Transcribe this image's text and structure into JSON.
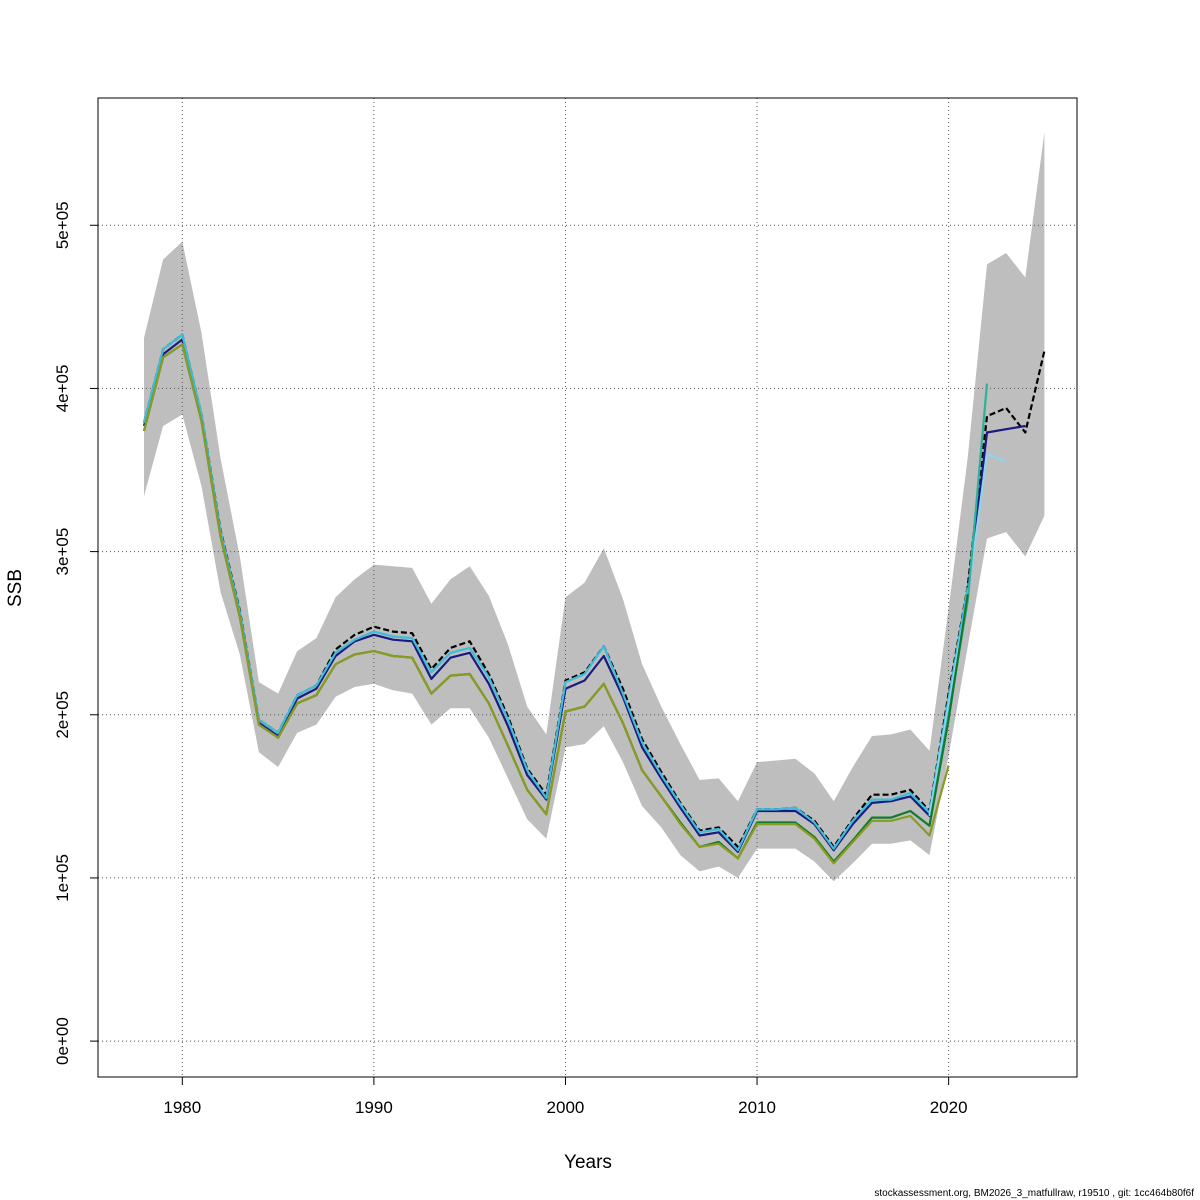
{
  "chart_data": {
    "type": "line",
    "title": "",
    "xlabel": "Years",
    "ylabel": "SSB",
    "xlim": [
      1975.6,
      2026.7
    ],
    "ylim": [
      -22000,
      578000
    ],
    "grid": true,
    "legend": "none",
    "x_ticks": [
      {
        "value": 1980,
        "label": "1980"
      },
      {
        "value": 1990,
        "label": "1990"
      },
      {
        "value": 2000,
        "label": "2000"
      },
      {
        "value": 2010,
        "label": "2010"
      },
      {
        "value": 2020,
        "label": "2020"
      }
    ],
    "y_ticks": [
      {
        "value": 0,
        "label": "0e+00"
      },
      {
        "value": 100000,
        "label": "1e+05"
      },
      {
        "value": 200000,
        "label": "2e+05"
      },
      {
        "value": 300000,
        "label": "3e+05"
      },
      {
        "value": 400000,
        "label": "4e+05"
      },
      {
        "value": 500000,
        "label": "5e+05"
      }
    ],
    "confidence_band": {
      "color": "#bebebe",
      "x": [
        1978,
        1979,
        1980,
        1981,
        1982,
        1983,
        1984,
        1985,
        1986,
        1987,
        1988,
        1989,
        1990,
        1991,
        1992,
        1993,
        1994,
        1995,
        1996,
        1997,
        1998,
        1999,
        2000,
        2001,
        2002,
        2003,
        2004,
        2005,
        2006,
        2007,
        2008,
        2009,
        2010,
        2011,
        2012,
        2013,
        2014,
        2015,
        2016,
        2017,
        2018,
        2019,
        2020,
        2021,
        2022,
        2023,
        2024,
        2025
      ],
      "lower": [
        334000,
        377000,
        384000,
        340000,
        275000,
        237000,
        177000,
        168000,
        189000,
        194000,
        211000,
        217000,
        219000,
        215000,
        213000,
        194000,
        204000,
        204000,
        186000,
        161000,
        136000,
        124000,
        180000,
        182000,
        193000,
        171000,
        144000,
        131000,
        114000,
        104000,
        107000,
        100000,
        118000,
        118000,
        118000,
        110000,
        98000,
        109000,
        121000,
        121000,
        123000,
        114000,
        175000,
        242000,
        308000,
        312000,
        297000,
        322000
      ],
      "upper": [
        431000,
        479000,
        490000,
        434000,
        357000,
        297000,
        220000,
        213000,
        239000,
        247000,
        272000,
        283000,
        292000,
        291000,
        290000,
        268000,
        283000,
        291000,
        273000,
        243000,
        205000,
        188000,
        272000,
        281000,
        302000,
        271000,
        231000,
        205000,
        182000,
        160000,
        161000,
        147000,
        171000,
        172000,
        173000,
        164000,
        147000,
        168000,
        187000,
        188000,
        191000,
        178000,
        265000,
        358000,
        476000,
        483000,
        468000,
        557000
      ]
    },
    "series": [
      {
        "color": "#000000",
        "dashed": true,
        "x": [
          1978,
          1979,
          1980,
          1981,
          1982,
          1983,
          1984,
          1985,
          1986,
          1987,
          1988,
          1989,
          1990,
          1991,
          1992,
          1993,
          1994,
          1995,
          1996,
          1997,
          1998,
          1999,
          2000,
          2001,
          2002,
          2003,
          2004,
          2005,
          2006,
          2007,
          2008,
          2009,
          2010,
          2011,
          2012,
          2013,
          2014,
          2015,
          2016,
          2017,
          2018,
          2019,
          2020,
          2021,
          2022,
          2023,
          2024,
          2025
        ],
        "values": [
          379000,
          424000,
          433000,
          384000,
          313000,
          264000,
          197000,
          189000,
          212000,
          218000,
          240000,
          249000,
          254000,
          251000,
          250000,
          228000,
          241000,
          245000,
          225000,
          199000,
          167000,
          151000,
          221000,
          226000,
          242000,
          216000,
          185000,
          165000,
          146000,
          129000,
          131000,
          119000,
          142000,
          142000,
          143000,
          135000,
          119000,
          136000,
          151000,
          151000,
          154000,
          141000,
          213000,
          279000,
          383000,
          388000,
          373000,
          423000
        ]
      },
      {
        "color": "#1a1a80",
        "dashed": false,
        "x": [
          1978,
          1979,
          1980,
          1981,
          1982,
          1983,
          1984,
          1985,
          1986,
          1987,
          1988,
          1989,
          1990,
          1991,
          1992,
          1993,
          1994,
          1995,
          1996,
          1997,
          1998,
          1999,
          2000,
          2001,
          2002,
          2003,
          2004,
          2005,
          2006,
          2007,
          2008,
          2009,
          2010,
          2011,
          2012,
          2013,
          2014,
          2015,
          2016,
          2017,
          2018,
          2019,
          2020,
          2021,
          2022,
          2023,
          2024
        ],
        "values": [
          377000,
          421000,
          430000,
          382000,
          311000,
          262000,
          195000,
          187000,
          210000,
          216000,
          236000,
          245000,
          249000,
          246000,
          245000,
          222000,
          235000,
          238000,
          219000,
          193000,
          163000,
          148000,
          216000,
          221000,
          236000,
          211000,
          180000,
          161000,
          143000,
          126000,
          128000,
          116000,
          141000,
          141000,
          141000,
          133000,
          117000,
          133000,
          146000,
          147000,
          150000,
          138000,
          207000,
          275000,
          373000,
          375000,
          377000
        ]
      },
      {
        "color": "#40bcd8",
        "dashed": false,
        "x": [
          1978,
          1979,
          1980,
          1981,
          1982,
          1983,
          1984,
          1985,
          1986,
          1987,
          1988,
          1989,
          1990,
          1991,
          1992,
          1993,
          1994,
          1995,
          1996,
          1997,
          1998,
          1999,
          2000,
          2001,
          2002,
          2003,
          2004,
          2005,
          2006,
          2007,
          2008,
          2009,
          2010,
          2011,
          2012,
          2013,
          2014,
          2015,
          2016,
          2017,
          2018,
          2019,
          2020,
          2021
        ],
        "values": [
          379000,
          424000,
          433000,
          384000,
          312000,
          263000,
          197000,
          189000,
          212000,
          218000,
          238000,
          246000,
          251000,
          248000,
          247000,
          226000,
          238000,
          241000,
          223000,
          197000,
          166000,
          149000,
          220000,
          225000,
          242000,
          213000,
          183000,
          163000,
          145000,
          128000,
          130000,
          117000,
          142000,
          142000,
          143000,
          134000,
          118000,
          135000,
          148000,
          148000,
          152000,
          140000,
          210000,
          278000
        ]
      },
      {
        "color": "#8fd3f0",
        "dashed": false,
        "x": [
          2019,
          2020,
          2021,
          2022,
          2023
        ],
        "values": [
          138000,
          206000,
          273000,
          360000,
          355000
        ]
      },
      {
        "color": "#2eb09a",
        "dashed": false,
        "x": [
          2019,
          2020,
          2021,
          2022
        ],
        "values": [
          132000,
          200000,
          270000,
          403000
        ]
      },
      {
        "color": "#127a2e",
        "dashed": false,
        "x": [
          1978,
          1979,
          1980,
          1981,
          1982,
          1983,
          1984,
          1985,
          1986,
          1987,
          1988,
          1989,
          1990,
          1991,
          1992,
          1993,
          1994,
          1995,
          1996,
          1997,
          1998,
          1999,
          2000,
          2001,
          2002,
          2003,
          2004,
          2005,
          2006,
          2007,
          2008,
          2009,
          2010,
          2011,
          2012,
          2013,
          2014,
          2015,
          2016,
          2017,
          2018,
          2019,
          2020,
          2021
        ],
        "values": [
          374000,
          419000,
          427000,
          380000,
          309000,
          260000,
          194000,
          186000,
          207000,
          212000,
          231000,
          237000,
          239000,
          236000,
          235000,
          213000,
          224000,
          225000,
          207000,
          181000,
          154000,
          139000,
          202000,
          205000,
          219000,
          195000,
          166000,
          150000,
          134000,
          119000,
          122000,
          112000,
          134000,
          134000,
          134000,
          125000,
          110000,
          123000,
          137000,
          137000,
          141000,
          132000,
          197000,
          274000
        ]
      },
      {
        "color": "#8a9a22",
        "dashed": false,
        "x": [
          1978,
          1979,
          1980,
          1981,
          1982,
          1983,
          1984,
          1985,
          1986,
          1987,
          1988,
          1989,
          1990,
          1991,
          1992,
          1993,
          1994,
          1995,
          1996,
          1997,
          1998,
          1999,
          2000,
          2001,
          2002,
          2003,
          2004,
          2005,
          2006,
          2007,
          2008,
          2009,
          2010,
          2011,
          2012,
          2013,
          2014,
          2015,
          2016,
          2017,
          2018,
          2019,
          2020
        ],
        "values": [
          374000,
          419000,
          427000,
          380000,
          309000,
          260000,
          194000,
          186000,
          207000,
          212000,
          231000,
          237000,
          239000,
          236000,
          235000,
          213000,
          224000,
          225000,
          207000,
          181000,
          154000,
          139000,
          202000,
          205000,
          219000,
          195000,
          166000,
          150000,
          133000,
          119000,
          121000,
          112000,
          133000,
          133000,
          133000,
          124000,
          109000,
          122000,
          135000,
          135000,
          138000,
          126000,
          169000
        ]
      }
    ]
  },
  "footer": {
    "source_note": "stockassessment.org, BM2026_3_matfullraw, r19510 , git: 1cc464b80f6f"
  }
}
